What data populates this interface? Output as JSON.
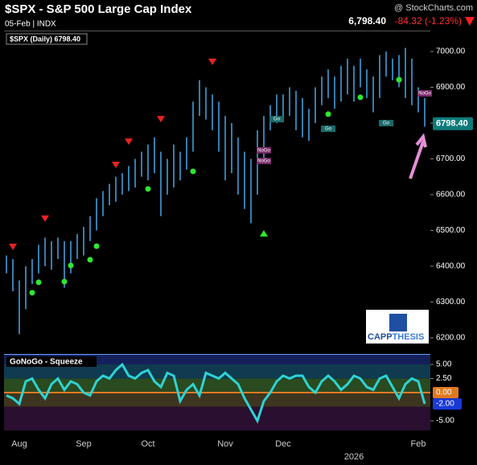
{
  "header": {
    "title": "$SPX - S&P 500 Large Cap Index",
    "date": "05-Feb | INDX",
    "source": "@ StockCharts.com",
    "price": "6,798.40",
    "change": "-84.32 (-1.23%)"
  },
  "logo": {
    "part1": "CAPP",
    "part2": "THESIS"
  },
  "chart_data": [
    {
      "type": "ohlc",
      "legend": "$SPX (Daily) 6798.40",
      "color": "#45a8e8",
      "categories": [
        null,
        null,
        "Aug",
        null,
        null,
        null,
        null,
        null,
        null,
        null,
        null,
        null,
        "Sep",
        null,
        null,
        null,
        null,
        null,
        null,
        null,
        null,
        null,
        "Oct",
        null,
        null,
        null,
        null,
        null,
        null,
        null,
        null,
        null,
        null,
        null,
        "Nov",
        null,
        null,
        null,
        null,
        null,
        null,
        null,
        null,
        "Dec",
        null,
        null,
        null,
        null,
        null,
        null,
        null,
        null,
        null,
        null,
        "2026",
        null,
        null,
        null,
        null,
        null,
        null,
        null,
        null,
        null,
        "Feb",
        null
      ],
      "high": [
        6430,
        6420,
        6360,
        6400,
        6420,
        6460,
        6480,
        6470,
        6480,
        6470,
        6470,
        6490,
        6510,
        6540,
        6590,
        6610,
        6630,
        6650,
        6660,
        6680,
        6700,
        6720,
        6740,
        6760,
        6720,
        6700,
        6740,
        6720,
        6760,
        6860,
        6920,
        6900,
        6880,
        6860,
        6820,
        6800,
        6760,
        6720,
        6700,
        6780,
        6820,
        6850,
        6880,
        6880,
        6900,
        6890,
        6870,
        6840,
        6900,
        6930,
        6950,
        6930,
        6960,
        6980,
        6960,
        6980,
        6950,
        6930,
        6990,
        7000,
        6980,
        6990,
        7010,
        6980,
        6900,
        6870
      ],
      "low": [
        6380,
        6330,
        6210,
        6280,
        6350,
        6380,
        6400,
        6390,
        6420,
        6340,
        6380,
        6420,
        6430,
        6470,
        6500,
        6540,
        6570,
        6580,
        6600,
        6610,
        6620,
        6650,
        6640,
        6660,
        6540,
        6600,
        6620,
        6640,
        6670,
        6720,
        6820,
        6810,
        6780,
        6720,
        6640,
        6660,
        6600,
        6560,
        6520,
        6600,
        6700,
        6780,
        6800,
        6810,
        6820,
        6780,
        6760,
        6750,
        6800,
        6850,
        6870,
        6840,
        6860,
        6880,
        6860,
        6900,
        6870,
        6830,
        6870,
        6930,
        6920,
        6900,
        6870,
        6850,
        6830,
        6790
      ],
      "down_triangles": {
        "color": "#e8231f",
        "x": [
          1,
          6,
          17,
          19,
          24,
          32
        ],
        "values": [
          6454,
          6533,
          6683,
          6748,
          6811,
          6971
        ]
      },
      "dots": {
        "color": "#2ee82e",
        "x": [
          4,
          5,
          9,
          10,
          13,
          14,
          22,
          29,
          50,
          55,
          61
        ],
        "values": [
          6326,
          6355,
          6357,
          6402,
          6418,
          6456,
          6616,
          6665,
          6825,
          6872,
          6921
        ]
      },
      "up_triangles": {
        "color": "#2ee82e",
        "x": [
          40
        ],
        "values": [
          6492
        ]
      },
      "go_labels": {
        "text": "Go",
        "x": [
          42,
          50,
          59
        ],
        "values": [
          6811,
          6784,
          6800
        ]
      },
      "nogo_labels": {
        "text": "NoGo",
        "x": [
          40,
          40,
          65
        ],
        "values": [
          6724,
          6694,
          6883
        ]
      },
      "price_label": {
        "value": 6798.4,
        "label": "6798.40"
      },
      "ylim": [
        6166,
        7054
      ],
      "yticks": [
        {
          "value": 6200,
          "label": "6200.00"
        },
        {
          "value": 6300,
          "label": "6300.00"
        },
        {
          "value": 6400,
          "label": "6400.00"
        },
        {
          "value": 6500,
          "label": "6500.00"
        },
        {
          "value": 6600,
          "label": "6600.00"
        },
        {
          "value": 6700,
          "label": "6700.00"
        },
        {
          "value": 6800,
          "label": "6800.00"
        },
        {
          "value": 6900,
          "label": "6900.00"
        },
        {
          "value": 7000,
          "label": "7000.00"
        }
      ]
    },
    {
      "type": "line",
      "title": "GoNoGo - Squeeze",
      "color": "#2ed3d3",
      "values": [
        -0.5,
        -1,
        -2,
        2,
        2.5,
        0.5,
        -1,
        1.5,
        2.5,
        0.5,
        2,
        1.5,
        0,
        -0.5,
        2,
        3,
        2.5,
        4,
        5,
        3,
        2.5,
        3.5,
        4,
        2,
        1,
        3.5,
        3,
        -1.5,
        0.5,
        1.5,
        -0.5,
        3.5,
        3,
        2.5,
        3.5,
        2.5,
        1.5,
        -1,
        -3,
        -5,
        -1.5,
        0,
        2,
        3,
        2.5,
        3,
        3,
        1,
        0,
        2,
        3,
        2,
        0.5,
        1.5,
        3,
        2.5,
        1,
        0.5,
        2.5,
        3,
        1,
        -1,
        1.5,
        2.5,
        2,
        -2
      ],
      "current_label": {
        "value": -2,
        "label": "-2.00"
      },
      "ylim": [
        -6.7,
        6.86
      ],
      "yticks": [
        {
          "value": 5,
          "label": "5.00"
        },
        {
          "value": 2.5,
          "label": "2.50"
        },
        {
          "value": 0,
          "label": "0.00"
        },
        {
          "value": -5,
          "label": "-5.00"
        }
      ]
    }
  ]
}
